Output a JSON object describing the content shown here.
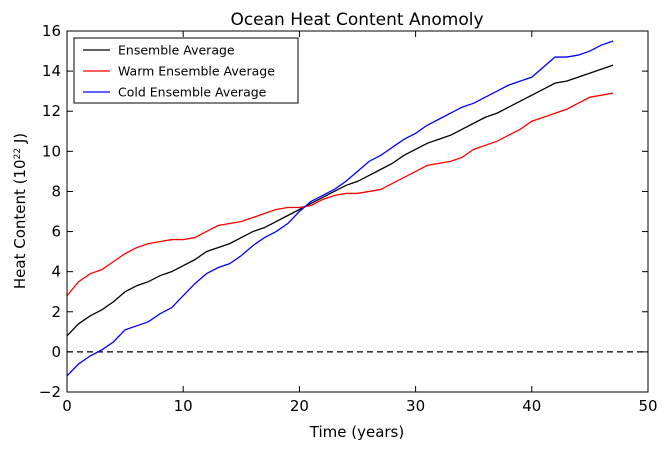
{
  "chart_data": {
    "type": "line",
    "title": "Ocean Heat Content Anomoly",
    "xlabel": "Time (years)",
    "ylabel": {
      "prefix": "Heat Content (10",
      "exponent": "22",
      "suffix": " J)"
    },
    "xlim": [
      0,
      50
    ],
    "ylim": [
      -2,
      16
    ],
    "xticks": [
      0,
      10,
      20,
      30,
      40,
      50
    ],
    "yticks": [
      -2,
      0,
      2,
      4,
      6,
      8,
      10,
      12,
      14,
      16
    ],
    "grid": false,
    "legend_position": "top-left",
    "reference_line": {
      "y": 0,
      "style": "dashed",
      "color": "#000000"
    },
    "x": [
      0,
      1,
      2,
      3,
      4,
      5,
      6,
      7,
      8,
      9,
      10,
      11,
      12,
      13,
      14,
      15,
      16,
      17,
      18,
      19,
      20,
      21,
      22,
      23,
      24,
      25,
      26,
      27,
      28,
      29,
      30,
      31,
      32,
      33,
      34,
      35,
      36,
      37,
      38,
      39,
      40,
      41,
      42,
      43,
      44,
      45,
      46,
      47
    ],
    "series": [
      {
        "name": "Ensemble Average",
        "color": "#000000",
        "values": [
          0.8,
          1.4,
          1.8,
          2.1,
          2.5,
          3.0,
          3.3,
          3.5,
          3.8,
          4.0,
          4.3,
          4.6,
          5.0,
          5.2,
          5.4,
          5.7,
          6.0,
          6.2,
          6.5,
          6.8,
          7.1,
          7.4,
          7.7,
          8.0,
          8.3,
          8.5,
          8.8,
          9.1,
          9.4,
          9.8,
          10.1,
          10.4,
          10.6,
          10.8,
          11.1,
          11.4,
          11.7,
          11.9,
          12.2,
          12.5,
          12.8,
          13.1,
          13.4,
          13.5,
          13.7,
          13.9,
          14.1,
          14.3
        ]
      },
      {
        "name": "Warm Ensemble Average",
        "color": "#ff0000",
        "values": [
          2.8,
          3.5,
          3.9,
          4.1,
          4.5,
          4.9,
          5.2,
          5.4,
          5.5,
          5.6,
          5.6,
          5.7,
          6.0,
          6.3,
          6.4,
          6.5,
          6.7,
          6.9,
          7.1,
          7.2,
          7.2,
          7.3,
          7.6,
          7.8,
          7.9,
          7.9,
          8.0,
          8.1,
          8.4,
          8.7,
          9.0,
          9.3,
          9.4,
          9.5,
          9.7,
          10.1,
          10.3,
          10.5,
          10.8,
          11.1,
          11.5,
          11.7,
          11.9,
          12.1,
          12.4,
          12.7,
          12.8,
          12.9
        ]
      },
      {
        "name": "Cold Ensemble Average",
        "color": "#0000ff",
        "values": [
          -1.2,
          -0.6,
          -0.2,
          0.1,
          0.5,
          1.1,
          1.3,
          1.5,
          1.9,
          2.2,
          2.8,
          3.4,
          3.9,
          4.2,
          4.4,
          4.8,
          5.3,
          5.7,
          6.0,
          6.4,
          7.0,
          7.5,
          7.8,
          8.1,
          8.5,
          9.0,
          9.5,
          9.8,
          10.2,
          10.6,
          10.9,
          11.3,
          11.6,
          11.9,
          12.2,
          12.4,
          12.7,
          13.0,
          13.3,
          13.5,
          13.7,
          14.2,
          14.7,
          14.7,
          14.8,
          15.0,
          15.3,
          15.5
        ]
      }
    ]
  }
}
